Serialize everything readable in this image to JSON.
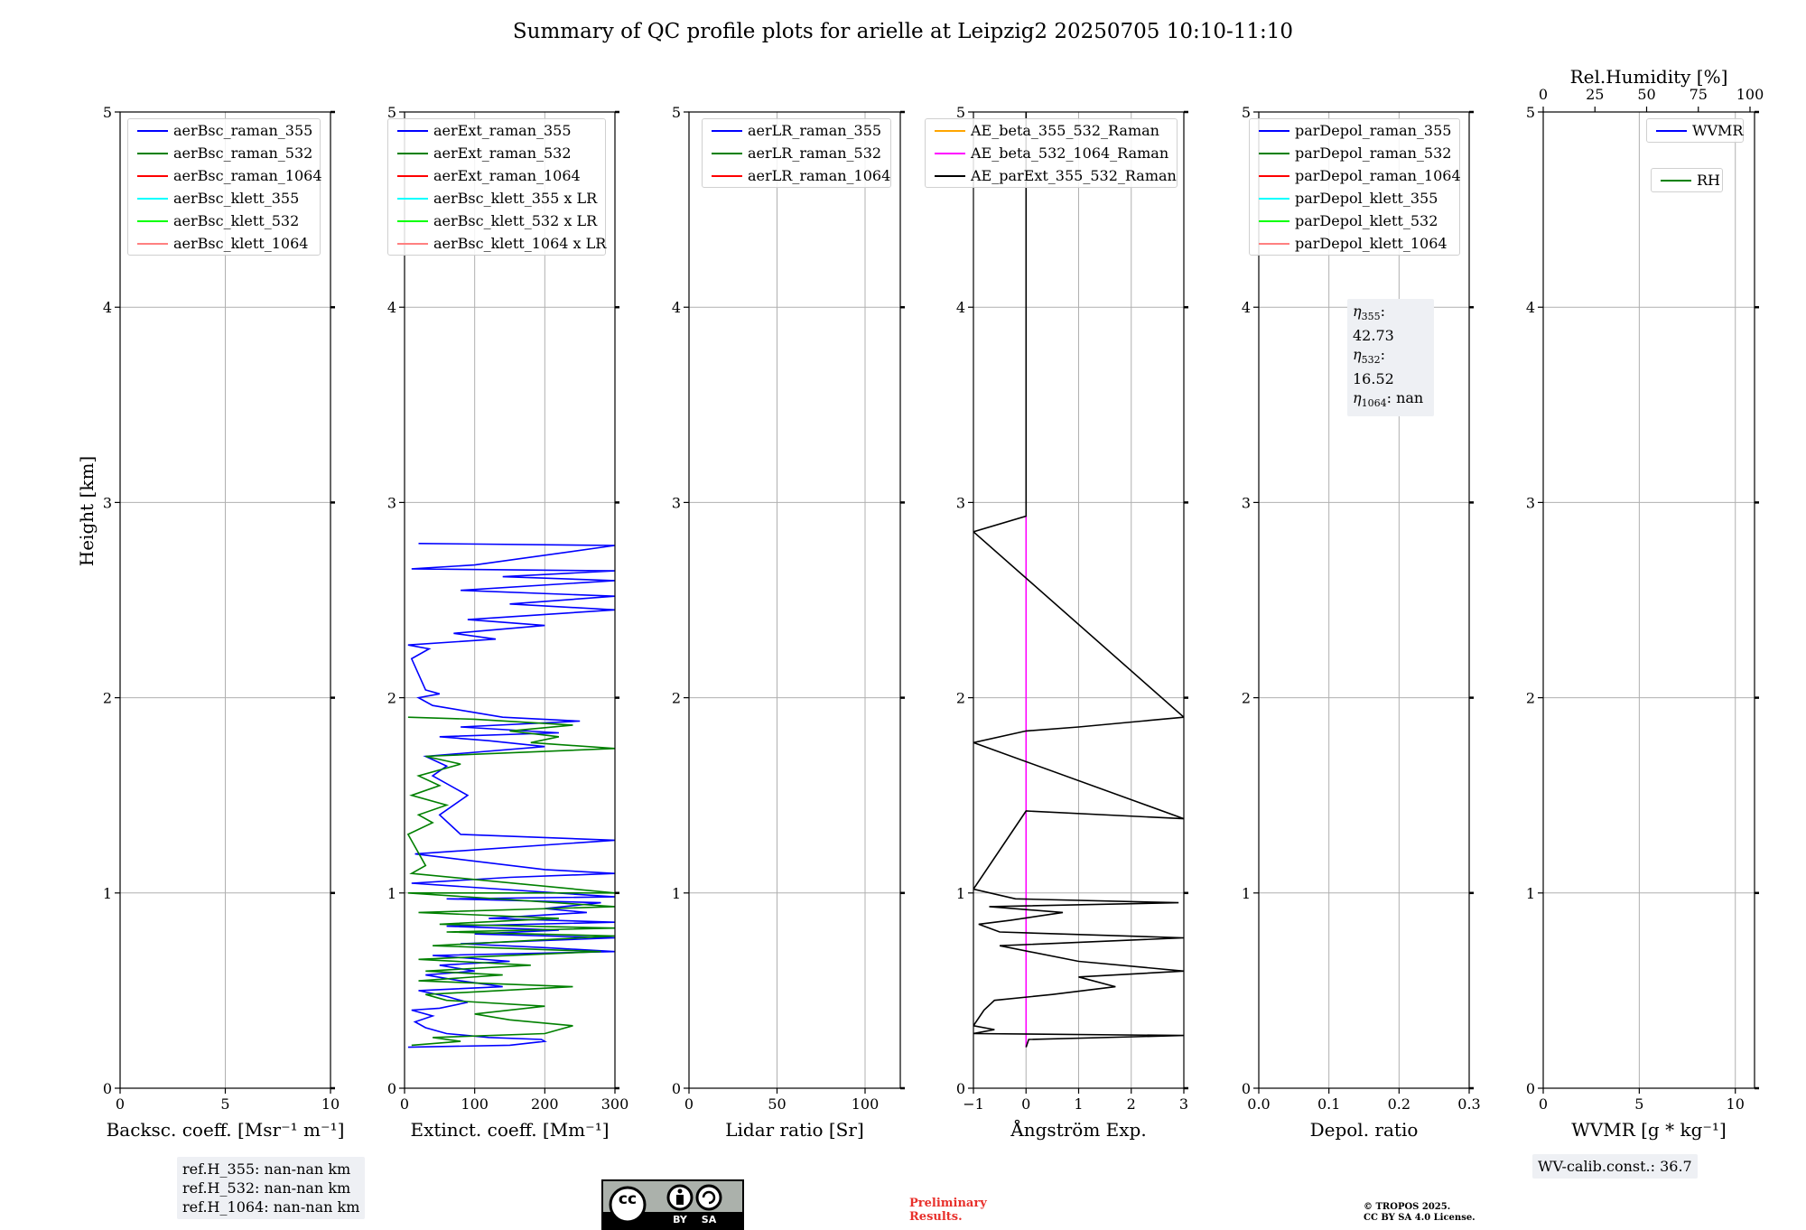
{
  "title": "Summary of QC profile plots for arielle at Leipzig2 20250705 10:10-11:10",
  "y_axis_label": "Height [km]",
  "y_ticks": [
    "0",
    "1",
    "2",
    "3",
    "4",
    "5"
  ],
  "chart_data": [
    {
      "type": "line",
      "panel": "backscatter",
      "xlabel": "Backsc. coeff. [Msr⁻¹ m⁻¹]",
      "xlim": [
        0,
        10
      ],
      "ylim": [
        0,
        5
      ],
      "x_ticks": [
        0,
        5,
        10
      ],
      "x_tick_labels": [
        "0",
        "5",
        "10"
      ],
      "legend": [
        {
          "name": "aerBsc_raman_355",
          "color": "#0000ff"
        },
        {
          "name": "aerBsc_raman_532",
          "color": "#008000"
        },
        {
          "name": "aerBsc_raman_1064",
          "color": "#ff0000"
        },
        {
          "name": "aerBsc_klett_355",
          "color": "#00ffff"
        },
        {
          "name": "aerBsc_klett_532",
          "color": "#00ff00"
        },
        {
          "name": "aerBsc_klett_1064",
          "color": "#ff8080"
        }
      ],
      "series": []
    },
    {
      "type": "line",
      "panel": "extinction",
      "xlabel": "Extinct. coeff. [Mm⁻¹]",
      "xlim": [
        0,
        300
      ],
      "ylim": [
        0,
        5
      ],
      "x_ticks": [
        0,
        100,
        200,
        300
      ],
      "x_tick_labels": [
        "0",
        "100",
        "200",
        "300"
      ],
      "legend": [
        {
          "name": "aerExt_raman_355",
          "color": "#0000ff"
        },
        {
          "name": "aerExt_raman_532",
          "color": "#008000"
        },
        {
          "name": "aerExt_raman_1064",
          "color": "#ff0000"
        },
        {
          "name": "aerBsc_klett_355 x LR",
          "color": "#00ffff"
        },
        {
          "name": "aerBsc_klett_532 x LR",
          "color": "#00ff00"
        },
        {
          "name": "aerBsc_klett_1064 x LR",
          "color": "#ff8080"
        }
      ],
      "series": [
        {
          "name": "aerExt_raman_355",
          "color": "#0000ff",
          "points": [
            [
              5,
              0.21
            ],
            [
              150,
              0.22
            ],
            [
              200,
              0.24
            ],
            [
              195,
              0.25
            ],
            [
              120,
              0.26
            ],
            [
              60,
              0.28
            ],
            [
              30,
              0.31
            ],
            [
              15,
              0.34
            ],
            [
              40,
              0.37
            ],
            [
              10,
              0.4
            ],
            [
              50,
              0.41
            ],
            [
              90,
              0.44
            ],
            [
              60,
              0.47
            ],
            [
              20,
              0.5
            ],
            [
              140,
              0.52
            ],
            [
              80,
              0.55
            ],
            [
              30,
              0.58
            ],
            [
              100,
              0.6
            ],
            [
              50,
              0.63
            ],
            [
              150,
              0.65
            ],
            [
              40,
              0.68
            ],
            [
              300,
              0.7
            ],
            [
              200,
              0.72
            ],
            [
              80,
              0.74
            ],
            [
              300,
              0.77
            ],
            [
              100,
              0.79
            ],
            [
              220,
              0.81
            ],
            [
              60,
              0.83
            ],
            [
              300,
              0.85
            ],
            [
              120,
              0.87
            ],
            [
              260,
              0.9
            ],
            [
              200,
              0.92
            ],
            [
              280,
              0.95
            ],
            [
              60,
              0.97
            ],
            [
              300,
              0.98
            ],
            [
              10,
              1.05
            ],
            [
              150,
              1.08
            ],
            [
              300,
              1.1
            ],
            [
              200,
              1.12
            ],
            [
              15,
              1.2
            ],
            [
              300,
              1.27
            ],
            [
              80,
              1.3
            ],
            [
              50,
              1.4
            ],
            [
              90,
              1.5
            ],
            [
              40,
              1.6
            ],
            [
              60,
              1.65
            ],
            [
              30,
              1.7
            ],
            [
              200,
              1.75
            ],
            [
              120,
              1.78
            ],
            [
              50,
              1.8
            ],
            [
              220,
              1.82
            ],
            [
              80,
              1.85
            ],
            [
              250,
              1.88
            ],
            [
              140,
              1.9
            ],
            [
              90,
              1.93
            ],
            [
              40,
              1.96
            ],
            [
              20,
              2.0
            ],
            [
              50,
              2.02
            ],
            [
              30,
              2.04
            ],
            [
              10,
              2.2
            ],
            [
              35,
              2.25
            ],
            [
              5,
              2.27
            ],
            [
              130,
              2.3
            ],
            [
              70,
              2.33
            ],
            [
              200,
              2.37
            ],
            [
              90,
              2.4
            ],
            [
              300,
              2.45
            ],
            [
              150,
              2.48
            ],
            [
              300,
              2.52
            ],
            [
              80,
              2.55
            ],
            [
              300,
              2.6
            ],
            [
              140,
              2.62
            ],
            [
              300,
              2.65
            ],
            [
              10,
              2.66
            ],
            [
              100,
              2.68
            ],
            [
              300,
              2.78
            ],
            [
              20,
              2.79
            ]
          ]
        },
        {
          "name": "aerExt_raman_532",
          "color": "#008000",
          "points": [
            [
              10,
              0.22
            ],
            [
              80,
              0.24
            ],
            [
              40,
              0.26
            ],
            [
              200,
              0.28
            ],
            [
              220,
              0.3
            ],
            [
              240,
              0.32
            ],
            [
              150,
              0.35
            ],
            [
              100,
              0.38
            ],
            [
              200,
              0.42
            ],
            [
              60,
              0.45
            ],
            [
              30,
              0.48
            ],
            [
              240,
              0.52
            ],
            [
              20,
              0.55
            ],
            [
              140,
              0.58
            ],
            [
              30,
              0.6
            ],
            [
              180,
              0.63
            ],
            [
              20,
              0.66
            ],
            [
              280,
              0.7
            ],
            [
              40,
              0.73
            ],
            [
              300,
              0.78
            ],
            [
              60,
              0.8
            ],
            [
              300,
              0.82
            ],
            [
              50,
              0.84
            ],
            [
              220,
              0.87
            ],
            [
              20,
              0.9
            ],
            [
              300,
              0.93
            ],
            [
              5,
              1.0
            ],
            [
              300,
              1.0
            ],
            [
              10,
              1.1
            ],
            [
              30,
              1.14
            ],
            [
              5,
              1.3
            ],
            [
              40,
              1.36
            ],
            [
              20,
              1.4
            ],
            [
              60,
              1.45
            ],
            [
              10,
              1.5
            ],
            [
              50,
              1.55
            ],
            [
              20,
              1.6
            ],
            [
              80,
              1.66
            ],
            [
              30,
              1.7
            ],
            [
              300,
              1.74
            ],
            [
              180,
              1.77
            ],
            [
              220,
              1.8
            ],
            [
              150,
              1.83
            ],
            [
              240,
              1.86
            ],
            [
              100,
              1.89
            ],
            [
              5,
              1.9
            ]
          ]
        }
      ]
    },
    {
      "type": "line",
      "panel": "lidar_ratio",
      "xlabel": "Lidar ratio [Sr]",
      "xlim": [
        0,
        120
      ],
      "ylim": [
        0,
        5
      ],
      "x_ticks": [
        0,
        50,
        100
      ],
      "x_tick_labels": [
        "0",
        "50",
        "100"
      ],
      "legend": [
        {
          "name": "aerLR_raman_355",
          "color": "#0000ff"
        },
        {
          "name": "aerLR_raman_532",
          "color": "#008000"
        },
        {
          "name": "aerLR_raman_1064",
          "color": "#ff0000"
        }
      ],
      "series": []
    },
    {
      "type": "line",
      "panel": "angstrom",
      "xlabel": "Ångström Exp.",
      "xlim": [
        -1,
        3
      ],
      "ylim": [
        0,
        5
      ],
      "x_ticks": [
        -1,
        0,
        1,
        2,
        3
      ],
      "x_tick_labels": [
        "−1",
        "0",
        "1",
        "2",
        "3"
      ],
      "legend": [
        {
          "name": "AE_beta_355_532_Raman",
          "color": "#ffa500"
        },
        {
          "name": "AE_beta_532_1064_Raman",
          "color": "#ff00ff"
        },
        {
          "name": "AE_parExt_355_532_Raman",
          "color": "#000000"
        }
      ],
      "series": [
        {
          "name": "AE_beta_532_1064_Raman",
          "color": "#ff00ff",
          "points": [
            [
              0,
              0.21
            ],
            [
              0,
              2.93
            ]
          ]
        },
        {
          "name": "AE_parExt_355_532_Raman",
          "color": "#000000",
          "points": [
            [
              0,
              0.21
            ],
            [
              0.05,
              0.25
            ],
            [
              3,
              0.27
            ],
            [
              -1,
              0.28
            ],
            [
              -0.6,
              0.3
            ],
            [
              -1,
              0.32
            ],
            [
              -0.8,
              0.4
            ],
            [
              -0.6,
              0.45
            ],
            [
              0.5,
              0.48
            ],
            [
              1.7,
              0.52
            ],
            [
              1,
              0.57
            ],
            [
              3,
              0.6
            ],
            [
              1,
              0.65
            ],
            [
              -0.5,
              0.73
            ],
            [
              3,
              0.77
            ],
            [
              -0.5,
              0.8
            ],
            [
              -0.9,
              0.84
            ],
            [
              -0.3,
              0.86
            ],
            [
              0.7,
              0.9
            ],
            [
              -0.7,
              0.93
            ],
            [
              2.9,
              0.95
            ],
            [
              -0.2,
              0.97
            ],
            [
              -1,
              1.02
            ],
            [
              0,
              1.42
            ],
            [
              3,
              1.38
            ],
            [
              -1,
              1.77
            ],
            [
              0,
              1.83
            ],
            [
              1,
              1.85
            ],
            [
              2.2,
              1.88
            ],
            [
              3,
              1.9
            ],
            [
              -1,
              2.85
            ],
            [
              0,
              2.93
            ],
            [
              0,
              5.0
            ]
          ]
        }
      ]
    },
    {
      "type": "line",
      "panel": "depol",
      "xlabel": "Depol. ratio",
      "xlim": [
        0,
        0.3
      ],
      "ylim": [
        0,
        5
      ],
      "x_ticks": [
        0,
        0.1,
        0.2,
        0.3
      ],
      "x_tick_labels": [
        "0.0",
        "0.1",
        "0.2",
        "0.3"
      ],
      "legend": [
        {
          "name": "parDepol_raman_355",
          "color": "#0000ff"
        },
        {
          "name": "parDepol_raman_532",
          "color": "#008000"
        },
        {
          "name": "parDepol_raman_1064",
          "color": "#ff0000"
        },
        {
          "name": "parDepol_klett_355",
          "color": "#00ffff"
        },
        {
          "name": "parDepol_klett_532",
          "color": "#00ff00"
        },
        {
          "name": "parDepol_klett_1064",
          "color": "#ff8080"
        }
      ],
      "series": []
    },
    {
      "type": "line",
      "panel": "wvmr",
      "xlabel": "WVMR [g * kg⁻¹]",
      "xlim": [
        0,
        11
      ],
      "ylim": [
        0,
        5
      ],
      "x_ticks": [
        0,
        5,
        10
      ],
      "x_tick_labels": [
        "0",
        "5",
        "10"
      ],
      "top_xlabel": "Rel.Humidity [%]",
      "top_xlim": [
        0,
        100
      ],
      "top_ticks": [
        0,
        25,
        50,
        75,
        100
      ],
      "top_tick_labels": [
        "0",
        "25",
        "50",
        "75",
        "100"
      ],
      "legend": [
        {
          "name": "WVMR",
          "color": "#0000ff"
        },
        {
          "name": "RH",
          "color": "#008000"
        }
      ],
      "series": []
    }
  ],
  "eta_box": [
    "42.73",
    "16.52",
    "nan"
  ],
  "ref_heights": [
    "ref.H_355: nan-nan km",
    "ref.H_532: nan-nan km",
    "ref.H_1064: nan-nan km"
  ],
  "wv_calib": "WV-calib.const.: 36.7",
  "preliminary": [
    "Preliminary",
    "Results."
  ],
  "copyright": [
    "© TROPOS 2025.",
    "CC BY SA 4.0 License."
  ],
  "cc_badge": {
    "labels": [
      "BY",
      "SA"
    ],
    "cc": "cc"
  }
}
